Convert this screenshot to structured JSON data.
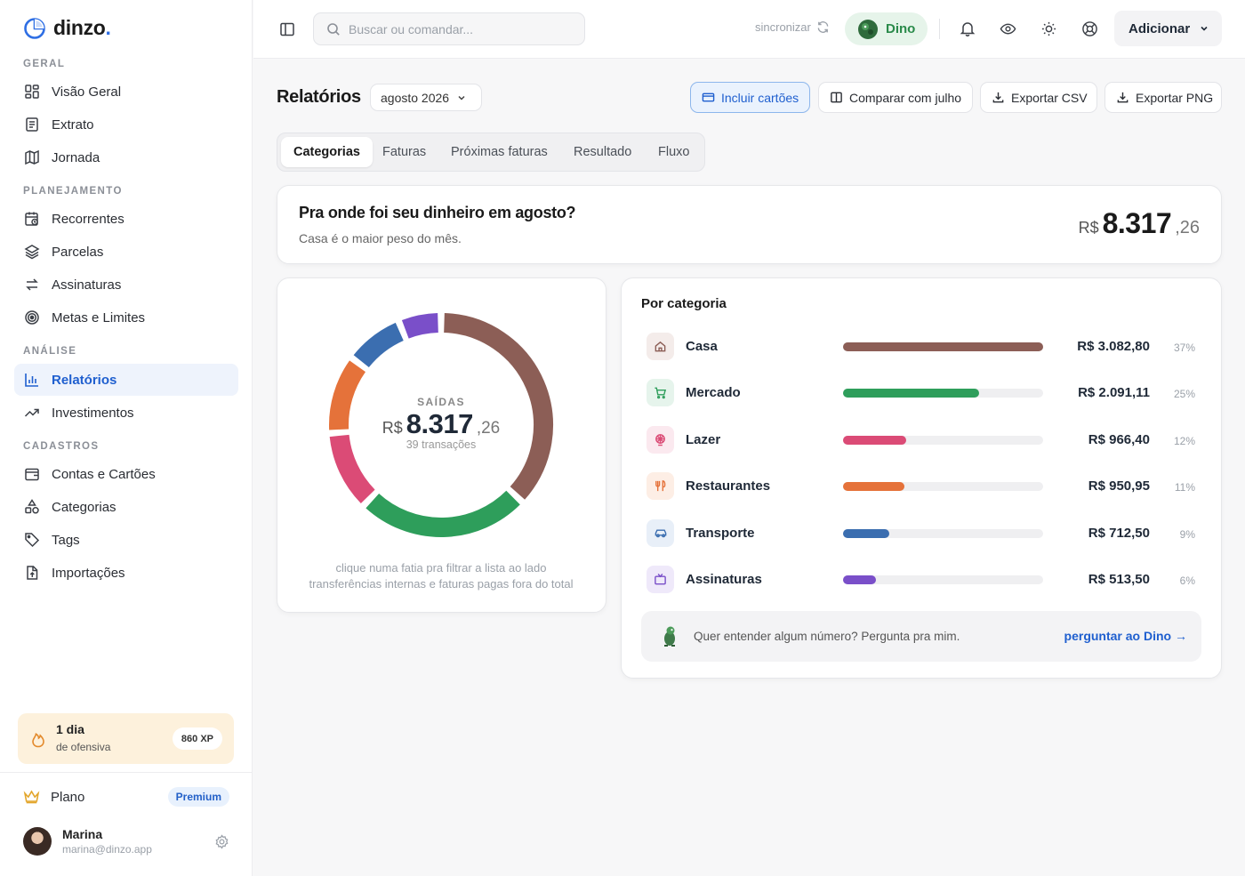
{
  "brand": {
    "name": "dinzo",
    "dot": "."
  },
  "sidebar": {
    "sections": [
      {
        "label": "GERAL"
      },
      {
        "label": "PLANEJAMENTO"
      },
      {
        "label": "ANÁLISE"
      },
      {
        "label": "CADASTROS"
      }
    ],
    "items": [
      {
        "label": "Visão Geral",
        "icon": "layout-grid-icon"
      },
      {
        "label": "Extrato",
        "icon": "file-text-icon"
      },
      {
        "label": "Jornada",
        "icon": "map-icon"
      },
      {
        "label": "Recorrentes",
        "icon": "calendar-repeat-icon"
      },
      {
        "label": "Parcelas",
        "icon": "layers-icon"
      },
      {
        "label": "Assinaturas",
        "icon": "repeat-arrows-icon"
      },
      {
        "label": "Metas e Limites",
        "icon": "target-icon"
      },
      {
        "label": "Relatórios",
        "icon": "bar-chart-icon",
        "active": true
      },
      {
        "label": "Investimentos",
        "icon": "trending-up-icon"
      },
      {
        "label": "Contas e Cartões",
        "icon": "wallet-icon"
      },
      {
        "label": "Categorias",
        "icon": "shapes-icon"
      },
      {
        "label": "Tags",
        "icon": "tag-icon"
      },
      {
        "label": "Importações",
        "icon": "file-import-icon"
      }
    ],
    "streak": {
      "title": "1 dia",
      "subtitle": "de ofensiva",
      "xp": "860 XP"
    },
    "plan": {
      "label": "Plano",
      "badge": "Premium"
    },
    "user": {
      "name": "Marina",
      "email": "marina@dinzo.app"
    }
  },
  "topbar": {
    "search_placeholder": "Buscar ou comandar...",
    "sync_label": "sincronizar",
    "assistant_label": "Dino",
    "add_label": "Adicionar"
  },
  "page": {
    "title": "Relatórios",
    "month": "agosto 2026",
    "actions": {
      "include_cards": "Incluir cartões",
      "compare": "Comparar com julho",
      "export_csv": "Exportar CSV",
      "export_png": "Exportar PNG"
    },
    "tabs": [
      "Categorias",
      "Faturas",
      "Próximas faturas",
      "Resultado",
      "Fluxo"
    ],
    "active_tab": "Categorias"
  },
  "summary": {
    "question": "Pra onde foi seu dinheiro em agosto?",
    "subtitle": "Casa é o maior peso do mês.",
    "currency": "R$",
    "amount_int": "8.317",
    "amount_cents": ",26"
  },
  "donut": {
    "label": "SAÍDAS",
    "currency": "R$",
    "amount_int": "8.317",
    "amount_cents": ",26",
    "count": "39 transações",
    "note_1": "clique numa fatia pra filtrar a lista ao lado",
    "note_2": "transferências internas e faturas pagas fora do total"
  },
  "categories": {
    "title": "Por categoria",
    "rows": [
      {
        "name": "Casa",
        "value_text": "R$ 3.082,80",
        "pct_text": "37%",
        "color": "#8c5e56",
        "bg": "#f4ecea",
        "icon": "home-icon"
      },
      {
        "name": "Mercado",
        "value_text": "R$ 2.091,11",
        "pct_text": "25%",
        "color": "#2e9e5b",
        "bg": "#e6f4ec",
        "icon": "cart-icon"
      },
      {
        "name": "Lazer",
        "value_text": "R$ 966,40",
        "pct_text": "12%",
        "color": "#db4b76",
        "bg": "#fbe9ef",
        "icon": "ferris-wheel-icon"
      },
      {
        "name": "Restaurantes",
        "value_text": "R$ 950,95",
        "pct_text": "11%",
        "color": "#e5723a",
        "bg": "#fdeee5",
        "icon": "utensils-icon"
      },
      {
        "name": "Transporte",
        "value_text": "R$ 712,50",
        "pct_text": "9%",
        "color": "#3b6eb0",
        "bg": "#e8eff8",
        "icon": "car-icon"
      },
      {
        "name": "Assinaturas",
        "value_text": "R$ 513,50",
        "pct_text": "6%",
        "color": "#7a4fc9",
        "bg": "#efe9fa",
        "icon": "tv-icon"
      }
    ],
    "ask": {
      "text": "Quer entender algum número? Pergunta pra mim.",
      "link": "perguntar ao Dino →"
    }
  },
  "chart_data": {
    "type": "pie",
    "variant": "donut",
    "categories": [
      "Casa",
      "Mercado",
      "Lazer",
      "Restaurantes",
      "Transporte",
      "Assinaturas"
    ],
    "values": [
      3082.8,
      2091.11,
      966.4,
      950.95,
      712.5,
      513.5
    ],
    "percent_labels": [
      "37%",
      "25%",
      "12%",
      "11%",
      "9%",
      "6%"
    ],
    "colors": [
      "#8c5e56",
      "#2e9e5b",
      "#db4b76",
      "#e5723a",
      "#3b6eb0",
      "#7a4fc9"
    ]
  }
}
